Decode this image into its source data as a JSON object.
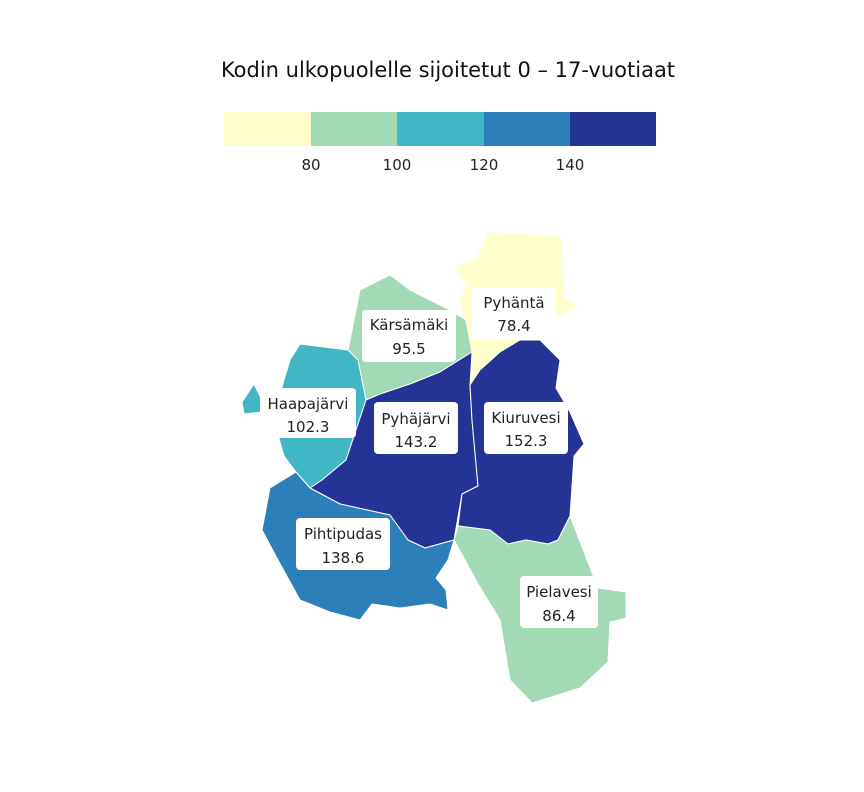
{
  "title": "Kodin ulkopuolelle sijoitetut 0 – 17-vuotiaat",
  "legend": {
    "colors": [
      "#ffffcc",
      "#a1dab4",
      "#41b6c4",
      "#2c7fb8",
      "#253494"
    ],
    "breaks": [
      "80",
      "100",
      "120",
      "140"
    ]
  },
  "regions": [
    {
      "name": "Pyhäntä",
      "value": "78.4",
      "color": "#ffffcc"
    },
    {
      "name": "Kärsämäki",
      "value": "95.5",
      "color": "#a1dab4"
    },
    {
      "name": "Haapajärvi",
      "value": "102.3",
      "color": "#41b6c4"
    },
    {
      "name": "Pyhäjärvi",
      "value": "143.2",
      "color": "#253494"
    },
    {
      "name": "Kiuruvesi",
      "value": "152.3",
      "color": "#253494"
    },
    {
      "name": "Pihtipudas",
      "value": "138.6",
      "color": "#2c7fb8"
    },
    {
      "name": "Pielavesi",
      "value": "86.4",
      "color": "#a1dab4"
    }
  ]
}
